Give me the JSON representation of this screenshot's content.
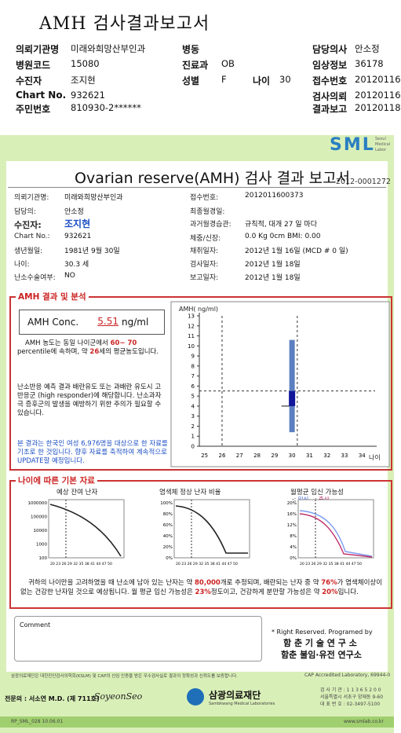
{
  "header": {
    "title": "AMH 검사결과보고서",
    "rows": [
      {
        "l1": "의뢰기관명",
        "v1": "미래와희망산부인과",
        "l2": "병동",
        "v2": "",
        "l4": "담당의사",
        "v4": "안소정"
      },
      {
        "l1": "병원코드",
        "v1": "15080",
        "l2": "진료과",
        "v2": "OB",
        "l4": "임상정보",
        "v4": "36178"
      },
      {
        "l1": "수진자",
        "v1": "조지현",
        "l2": "성별",
        "v2": "F",
        "l3": "나이",
        "v3": "30",
        "l4": "접수번호",
        "v4": "20120116"
      },
      {
        "l1": "Chart No.",
        "v1": "932621",
        "l2": "",
        "v2": "",
        "l4": "검사의뢰",
        "v4": "20120116"
      },
      {
        "l1": "주민번호",
        "v1": "810930-2******",
        "l2": "",
        "v2": "",
        "l4": "결과보고",
        "v4": "20120118"
      }
    ]
  },
  "report": {
    "brand": "SML",
    "brand_sub": [
      "Seoul",
      "Medical",
      "Labor"
    ],
    "title": "Ovarian reserve(AMH) 검사 결과 보고서",
    "report_no": "2012-0001272",
    "left_fields": [
      {
        "label": "의뢰기관명:",
        "value": "미래와희망산부인과"
      },
      {
        "label": "담당의:",
        "value": "안소정"
      },
      {
        "label": "수진자:",
        "value": "조지현"
      },
      {
        "label": "Chart No.:",
        "value": "932621"
      },
      {
        "label": "생년월일:",
        "value": "1981년 9월 30일"
      },
      {
        "label": "나이:",
        "value": "30.3 세"
      },
      {
        "label": "난소수술여부:",
        "value": "NO"
      }
    ],
    "right_fields": [
      {
        "label": "접수번호:",
        "value": "2012011600373"
      },
      {
        "label": "최종월경일:",
        "value": ""
      },
      {
        "label": "과거월경습관:",
        "value": "규칙적, 대개  27 일 마다"
      },
      {
        "label": "체중/신장:",
        "value": "0.0 Kg        0cm    BMI:    0.00"
      },
      {
        "label": "채취일자:",
        "value": "2012년 1월 16일   (MCD # 0 일)"
      },
      {
        "label": "검사일자:",
        "value": "2012년 1월 18일"
      },
      {
        "label": "보고일자:",
        "value": "2012년 1월 18일"
      }
    ]
  },
  "amh": {
    "section_title": "AMH 결과 및 분석",
    "conc_label": "AMH Conc.",
    "conc_value": "5.51",
    "conc_unit": "ng/ml",
    "text1_a": "AMH 농도는 동일 나이군에서",
    "text1_range": "60~ 70",
    "text1_b": "percentile에 속하며, 약",
    "text1_age": "26",
    "text1_c": "세의 평균농도입니다.",
    "text2": "난소반응 예측 결과 배란유도 또는 과배란 유도시 고반응군 (high responder)에 해당합니다. 난소과자극 증후군의 발생을 예방하기 위한 주의가 필요할 수 있습니다.",
    "text3": "본 결과는 한국인 여성 6,976명을 대상으로 한 자료를 기초로 한 것입니다. 향후 자료를 축적하여 계속적으로 UPDATE할 예정입니다."
  },
  "chart_data": {
    "type": "box",
    "ylabel": "AMH( ng/ml)",
    "xlabel": "나이",
    "x_ticks": [
      25,
      26,
      27,
      28,
      29,
      30,
      31,
      32,
      33,
      34
    ],
    "y_ticks": [
      0,
      1,
      2,
      3,
      4,
      5,
      6,
      7,
      8,
      9,
      10,
      11,
      12,
      13
    ],
    "ylim": [
      0,
      13
    ],
    "patient_age": 30.3,
    "patient_value": 5.51,
    "box": {
      "age": 30,
      "low": 1.4,
      "q1": 4.0,
      "q3": 5.5,
      "high": 10.6
    },
    "reference_age": 26
  },
  "basic": {
    "section_title": "나이에 따른 기본 자료",
    "c1_title": "예상 잔여 난자",
    "c1_y": [
      "1000000",
      "100000",
      "10000",
      "1000",
      "100"
    ],
    "c2_title": "염색체 정상 난자 비율",
    "c2_y": [
      "100%",
      "80%",
      "60%",
      "40%",
      "20%",
      "0%"
    ],
    "c3_title": "월평균 임신 가능성",
    "c3_legend_a": "임신",
    "c3_legend_b": "출산",
    "c3_y": [
      "20%",
      "16%",
      "12%",
      "8%",
      "4%",
      "0%"
    ],
    "x_ticks": "20 23 26 29 32 35 38 41 44 47 50",
    "summary_a": "귀하의 나이만을 고려하였을 때 난소에 남아 있는 난자는 약",
    "summary_eggs": "80,000",
    "summary_b": "개로 추정되며, 배란되는 난자 중 약",
    "summary_pct": "76%",
    "summary_c": "가 염색체이상이 없는 건강한 난자일 것으로 예상됩니다. 월 평균 임신 가능성은",
    "summary_preg": "23%",
    "summary_d": "정도이고, 건강하게 분만할 가능성은 약",
    "summary_birth": "20%",
    "summary_e": "입니다."
  },
  "comment": {
    "label": "Comment",
    "rights": "* Right Reserved. Programed by",
    "org1": "함 춘 기 술 연 구 소",
    "org2": "함춘 불임·유전 연구소"
  },
  "footer": {
    "cert": "삼광의료재단은 대한진단검사의학회(KSLM) 및 CAP의 신임 인증을 받은 우수검사실로 결과의 정확성과 신뢰도를 보증합니다.",
    "cap": "CAP  Accredited  Laboratory,  69944-0",
    "doctor": "전문의 : 서소연 M.D. (제 711호)",
    "signature": "SoyeonSeo",
    "foundation": "삼광의료재단",
    "foundation_en": "Sambkwang Medical Laboratories",
    "tel1": "검 사 기 관 : 1 1 3 6 5 2 0 0",
    "tel2": "서울특별시 서초구 양재동 9-60",
    "tel3": "대 표 번 호 : 02-3497-5100",
    "code": "RP_SML_028  10.06.01",
    "web": "www.smlab.co.kr"
  }
}
